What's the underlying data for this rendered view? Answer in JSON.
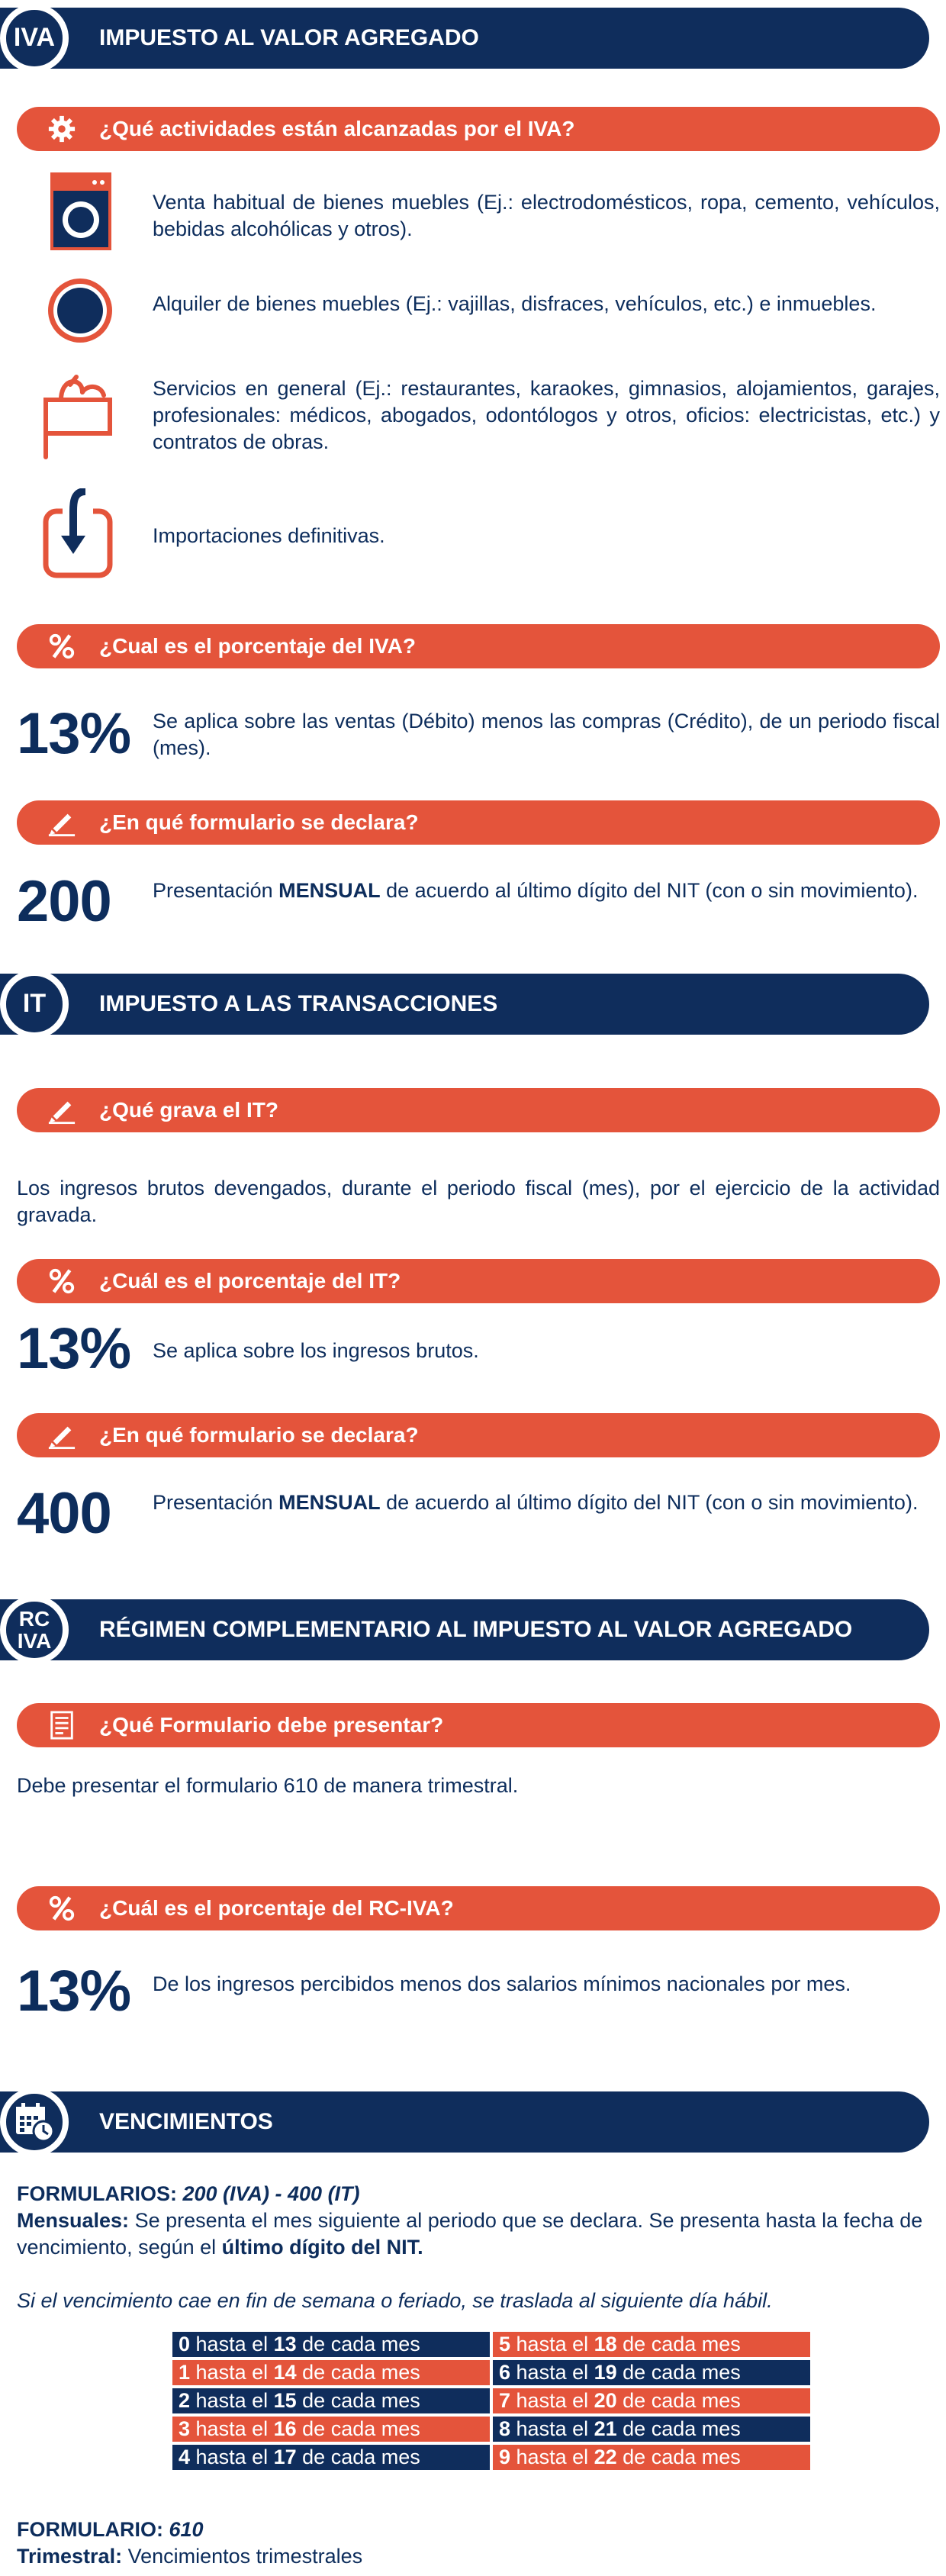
{
  "iva": {
    "badge": "IVA",
    "title": "IMPUESTO AL VALOR AGREGADO",
    "q_activities": "¿Qué actividades están alcanzadas por el IVA?",
    "activities": [
      "Venta habitual de bienes muebles (Ej.: electrodomésticos, ropa, cemento, vehículos, bebidas alcohólicas y otros).",
      "Alquiler de bienes muebles (Ej.: vajillas, disfraces, vehículos, etc.) e inmuebles.",
      "Servicios en general (Ej.: restaurantes, karaokes, gimnasios, alojamientos, garajes, profesionales: médicos, abogados, odontólogos y otros, oficios: electricistas, etc.) y contratos de obras.",
      "Importaciones definitivas."
    ],
    "q_percent": "¿Cual es el porcentaje del IVA?",
    "percent": "13%",
    "percent_text": "Se aplica sobre las ventas (Débito) menos las compras (Crédito), de un periodo fiscal (mes).",
    "q_form": "¿En qué formulario se declara?",
    "form_number": "200",
    "form_text_pre": "Presentación ",
    "form_text_bold": "MENSUAL",
    "form_text_post": " de acuerdo al último dígito del NIT (con o sin movimiento)."
  },
  "it": {
    "badge": "IT",
    "title": "IMPUESTO A LAS TRANSACCIONES",
    "q_grava": "¿Qué grava el IT?",
    "grava_text": "Los ingresos brutos devengados, durante el periodo fiscal (mes), por el ejercicio de la actividad gravada.",
    "q_percent": "¿Cuál es el porcentaje del IT?",
    "percent": "13%",
    "percent_text": "Se aplica sobre los ingresos brutos.",
    "q_form": "¿En qué formulario se declara?",
    "form_number": "400",
    "form_text_pre": "Presentación ",
    "form_text_bold": "MENSUAL",
    "form_text_post": " de acuerdo al último dígito del NIT (con o sin movimiento)."
  },
  "rciva": {
    "badge_line1": "RC",
    "badge_line2": "IVA",
    "title": "RÉGIMEN COMPLEMENTARIO AL IMPUESTO AL VALOR AGREGADO",
    "q_form": "¿Qué Formulario debe presentar?",
    "form_text": "Debe presentar el formulario 610 de manera trimestral.",
    "q_percent": "¿Cuál es el porcentaje del RC-IVA?",
    "percent": "13%",
    "percent_text": "De los ingresos percibidos menos dos salarios mínimos nacionales por mes."
  },
  "vencimientos": {
    "title": "VENCIMIENTOS",
    "formularios_label": "FORMULARIOS: ",
    "formularios_value": "200 (IVA) - 400 (IT)",
    "mensuales_label": "Mensuales:",
    "mensuales_text": " Se presenta el mes siguiente al periodo que se declara. Se presenta hasta la fecha de vencimiento, según el ",
    "mensuales_bold": "último dígito del NIT.",
    "note": "Si el vencimiento cae en fin de semana o feriado, se traslada al siguiente día hábil.",
    "table": [
      [
        {
          "d": "0",
          "t1": " hasta el ",
          "n": "13",
          "t2": " de cada mes"
        },
        {
          "d": "5",
          "t1": " hasta el ",
          "n": "18",
          "t2": " de cada mes"
        }
      ],
      [
        {
          "d": "1",
          "t1": " hasta el ",
          "n": "14",
          "t2": " de cada mes"
        },
        {
          "d": "6",
          "t1": " hasta el ",
          "n": "19",
          "t2": " de cada mes"
        }
      ],
      [
        {
          "d": "2",
          "t1": " hasta el ",
          "n": "15",
          "t2": " de cada mes"
        },
        {
          "d": "7",
          "t1": " hasta el ",
          "n": "20",
          "t2": " de cada mes"
        }
      ],
      [
        {
          "d": "3",
          "t1": " hasta el ",
          "n": "16",
          "t2": " de cada mes"
        },
        {
          "d": "8",
          "t1": " hasta el ",
          "n": "21",
          "t2": " de cada mes"
        }
      ],
      [
        {
          "d": "4",
          "t1": " hasta el ",
          "n": "17",
          "t2": " de cada mes"
        },
        {
          "d": "9",
          "t1": " hasta el ",
          "n": "22",
          "t2": " de cada mes"
        }
      ]
    ],
    "formulario610_label": "FORMULARIO: ",
    "formulario610_value": "610",
    "trimestral_label": "Trimestral:",
    "trimestral_text": " Vencimientos trimestrales"
  },
  "colors": {
    "navy": "#0f2d5c",
    "orange": "#e4543b"
  },
  "icons": {
    "q_activities": "gear-icon",
    "activity_1": "washing-machine-icon",
    "activity_2": "circle-badge-icon",
    "activity_3": "service-desk-icon",
    "activity_4": "import-arrow-icon",
    "q_percent": "percent-icon",
    "q_form": "pencil-icon",
    "q_document": "document-icon",
    "vencimientos": "calendar-clock-icon"
  }
}
